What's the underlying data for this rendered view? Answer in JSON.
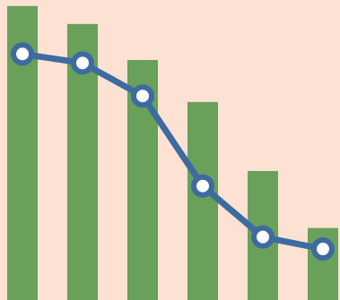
{
  "colors": {
    "background": "#fde2d3",
    "bar": "#69a05a",
    "line": "#3d6ba0",
    "marker_fill": "#ffffff",
    "marker_stroke": "#3d6ba0"
  },
  "chart_data": {
    "type": "bar",
    "categories": [
      "",
      "",
      "",
      "",
      "",
      ""
    ],
    "ylim": [
      0,
      100
    ],
    "grid": false,
    "legend": "none",
    "series": [
      {
        "type": "bar",
        "values": [
          98,
          92,
          80,
          66,
          43,
          24
        ]
      },
      {
        "type": "line",
        "values": [
          82,
          79,
          68,
          38,
          21,
          17
        ]
      }
    ]
  }
}
